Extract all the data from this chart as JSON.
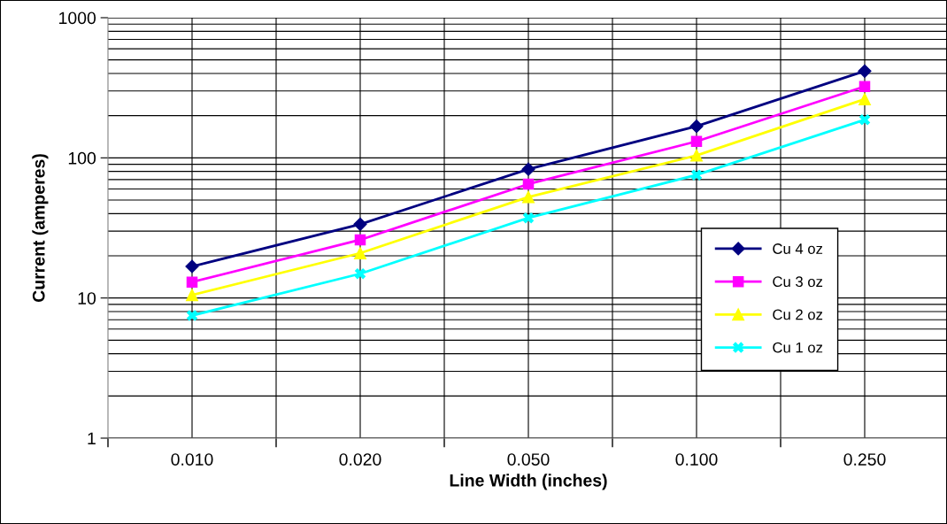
{
  "chart_data": {
    "type": "line",
    "xlabel": "Line Width (inches)",
    "ylabel": "Current (amperes)",
    "categories": [
      "0.010",
      "0.020",
      "0.050",
      "0.100",
      "0.250"
    ],
    "log": "y",
    "ylim": [
      1,
      1000
    ],
    "yticks": [
      1,
      10,
      100,
      1000
    ],
    "grid": true,
    "legend": "right",
    "line_style": "solid",
    "series": [
      {
        "name": "Cu 4 oz",
        "color": "#000080",
        "marker": "diamond",
        "values": [
          16.8,
          33.6,
          83,
          168,
          416
        ]
      },
      {
        "name": "Cu 3 oz",
        "color": "#ff00ff",
        "marker": "square",
        "values": [
          13.0,
          26,
          65,
          131,
          323
        ]
      },
      {
        "name": "Cu 2 oz",
        "color": "#ffff00",
        "marker": "triangle",
        "values": [
          10.5,
          20.9,
          52.5,
          104,
          262
        ]
      },
      {
        "name": "Cu 1 oz",
        "color": "#00ffff",
        "marker": "cross",
        "values": [
          7.5,
          14.9,
          37.3,
          75.5,
          187
        ]
      }
    ]
  }
}
